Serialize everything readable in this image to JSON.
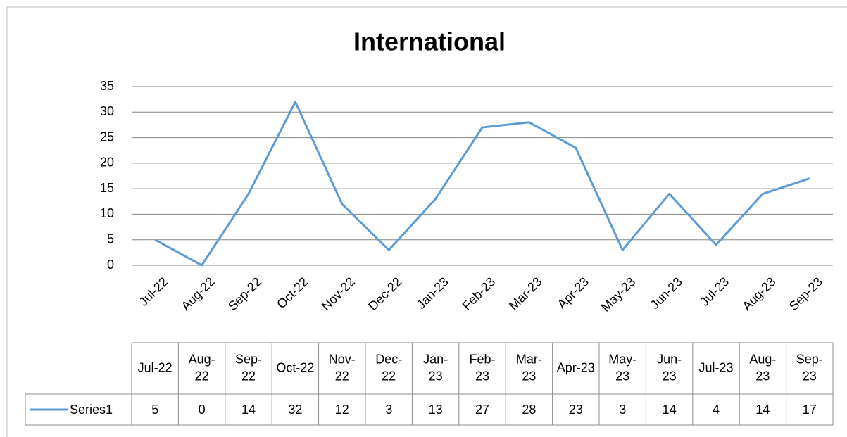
{
  "chart_data": {
    "type": "line",
    "title": "International",
    "categories": [
      "Jul-22",
      "Aug-22",
      "Sep-22",
      "Oct-22",
      "Nov-22",
      "Dec-22",
      "Jan-23",
      "Feb-23",
      "Mar-23",
      "Apr-23",
      "May-23",
      "Jun-23",
      "Jul-23",
      "Aug-23",
      "Sep-23"
    ],
    "series": [
      {
        "name": "Series1",
        "color": "#5b9bd5",
        "values": [
          5,
          0,
          14,
          32,
          12,
          3,
          13,
          27,
          28,
          23,
          3,
          14,
          4,
          14,
          17
        ]
      }
    ],
    "ylim": [
      0,
      35
    ],
    "yticks": [
      0,
      5,
      10,
      15,
      20,
      25,
      30,
      35
    ],
    "grid": true,
    "data_table": true
  }
}
